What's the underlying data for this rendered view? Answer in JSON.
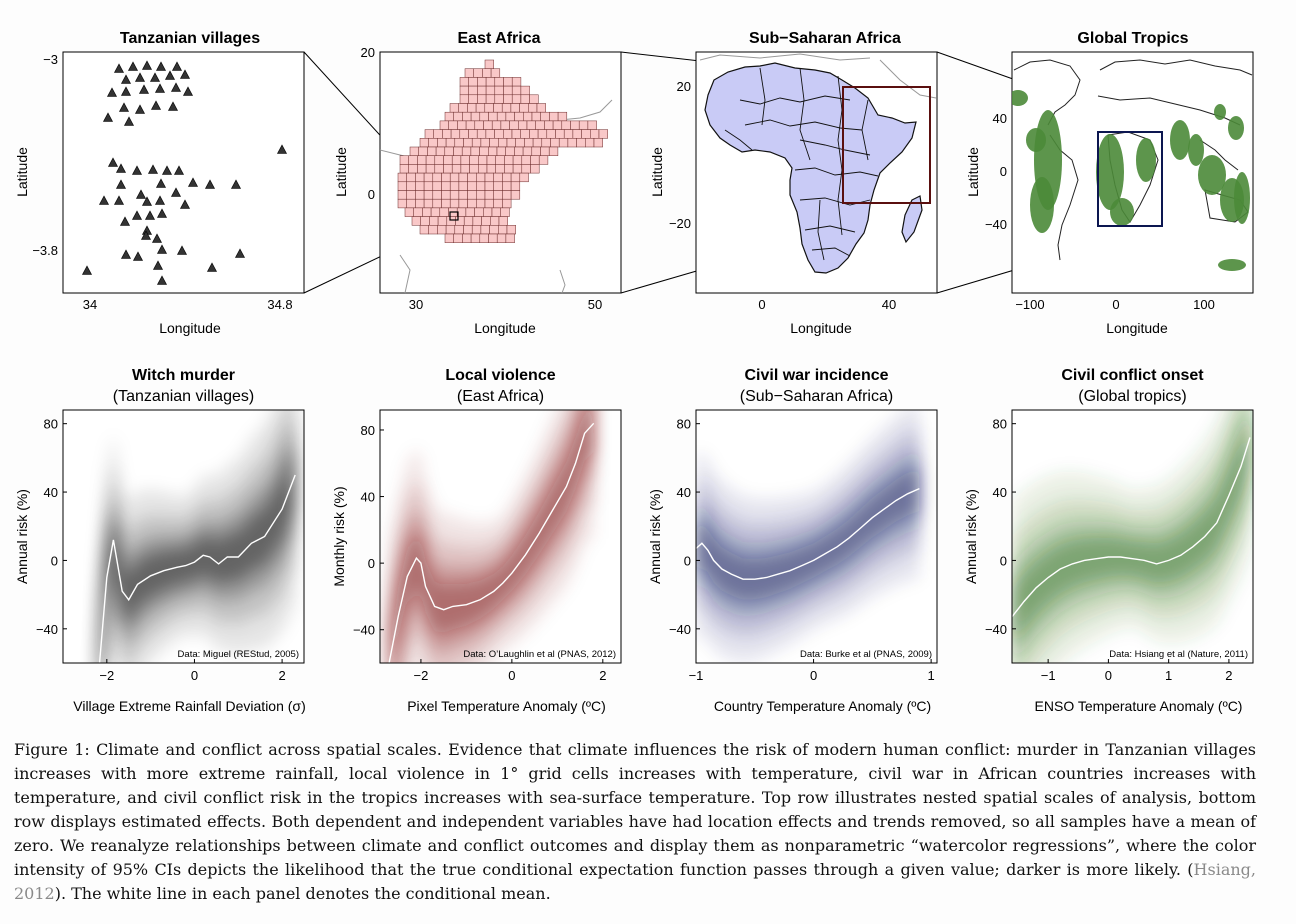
{
  "top_panels": [
    {
      "title": "Tanzanian villages",
      "xlabel": "Longitude",
      "ylabel": "Latitude",
      "xticks": [
        "34",
        "34.8"
      ],
      "yticks": [
        "−3",
        "−3.8"
      ]
    },
    {
      "title": "East Africa",
      "xlabel": "Longitude",
      "ylabel": "Latitude",
      "xticks": [
        "30",
        "50"
      ],
      "yticks": [
        "20",
        "0"
      ]
    },
    {
      "title": "Sub−Saharan Africa",
      "xlabel": "Longitude",
      "ylabel": "Latitude",
      "xticks": [
        "0",
        "40"
      ],
      "yticks": [
        "20",
        "0",
        "−20"
      ]
    },
    {
      "title": "Global Tropics",
      "xlabel": "Longitude",
      "ylabel": "Latitude",
      "xticks": [
        "−100",
        "0",
        "100"
      ],
      "yticks": [
        "40",
        "0",
        "−40"
      ]
    }
  ],
  "chart_data": [
    {
      "type": "line",
      "title": "Witch murder",
      "subtitle": "(Tanzanian villages)",
      "xlabel": "Village Extreme Rainfall Deviation (σ)",
      "ylabel": "Annual risk (%)",
      "xticks": [
        "−2",
        "0",
        "2"
      ],
      "yticks": [
        "80",
        "40",
        "0",
        "−40"
      ],
      "xlim": [
        -3.0,
        2.5
      ],
      "ylim": [
        -60,
        88
      ],
      "color": "#000000",
      "source": "Data: Miguel (REStud, 2005)",
      "x": [
        -2.2,
        -2.0,
        -1.85,
        -1.65,
        -1.5,
        -1.3,
        -1.0,
        -0.7,
        -0.4,
        -0.2,
        0.0,
        0.2,
        0.35,
        0.55,
        0.75,
        1.0,
        1.3,
        1.6,
        2.0,
        2.3
      ],
      "y": [
        -70,
        -10,
        12,
        -18,
        -23,
        -14,
        -9,
        -6,
        -4,
        -3,
        -1,
        3,
        2,
        -2,
        2,
        2,
        10,
        14,
        30,
        50
      ]
    },
    {
      "type": "line",
      "title": "Local violence",
      "subtitle": "(East Africa)",
      "xlabel": "Pixel Temperature Anomaly (ºC)",
      "ylabel": "Monthly risk (%)",
      "xticks": [
        "−2",
        "0",
        "2"
      ],
      "yticks": [
        "80",
        "40",
        "0",
        "−40"
      ],
      "xlim": [
        -2.9,
        2.4
      ],
      "ylim": [
        -60,
        92
      ],
      "color": "#7a1616",
      "source": "Data: O’Laughlin et al (PNAS, 2012)",
      "x": [
        -2.7,
        -2.5,
        -2.3,
        -2.1,
        -2.0,
        -1.9,
        -1.7,
        -1.5,
        -1.3,
        -1.0,
        -0.7,
        -0.4,
        -0.2,
        0.0,
        0.3,
        0.6,
        0.9,
        1.2,
        1.4,
        1.6,
        1.8
      ],
      "y": [
        -60,
        -32,
        -8,
        3,
        0,
        -14,
        -26,
        -28,
        -26,
        -25,
        -22,
        -17,
        -12,
        -6,
        5,
        18,
        32,
        46,
        60,
        78,
        84
      ]
    },
    {
      "type": "line",
      "title": "Civil war incidence",
      "subtitle": "(Sub−Saharan Africa)",
      "xlabel": "Country Temperature Anomaly (ºC)",
      "ylabel": "Annual risk (%)",
      "xticks": [
        "−1",
        "0",
        "1"
      ],
      "yticks": [
        "80",
        "40",
        "0",
        "−40"
      ],
      "xlim": [
        -1.0,
        1.05
      ],
      "ylim": [
        -60,
        88
      ],
      "color": "#101c5c",
      "source": "Data: Burke et al (PNAS, 2009)",
      "x": [
        -1.0,
        -0.95,
        -0.9,
        -0.85,
        -0.78,
        -0.7,
        -0.6,
        -0.5,
        -0.4,
        -0.3,
        -0.2,
        -0.1,
        0.0,
        0.1,
        0.2,
        0.3,
        0.4,
        0.5,
        0.6,
        0.7,
        0.8,
        0.9
      ],
      "y": [
        7,
        10,
        6,
        0,
        -5,
        -8,
        -11,
        -11,
        -10,
        -8,
        -6,
        -3,
        0,
        4,
        8,
        13,
        19,
        25,
        30,
        35,
        39,
        42
      ]
    },
    {
      "type": "line",
      "title": "Civil conflict onset",
      "subtitle": "(Global tropics)",
      "xlabel": "ENSO Temperature Anomaly (ºC)",
      "ylabel": "Annual risk (%)",
      "xticks": [
        "−1",
        "0",
        "1",
        "2"
      ],
      "yticks": [
        "80",
        "40",
        "0",
        "−40"
      ],
      "xlim": [
        -1.6,
        2.4
      ],
      "ylim": [
        -60,
        88
      ],
      "color": "#256b1f",
      "source": "Data: Hsiang et al (Nature, 2011)",
      "x": [
        -1.6,
        -1.4,
        -1.2,
        -1.0,
        -0.8,
        -0.6,
        -0.4,
        -0.2,
        0.0,
        0.2,
        0.4,
        0.6,
        0.8,
        1.0,
        1.2,
        1.4,
        1.6,
        1.8,
        2.0,
        2.2,
        2.35
      ],
      "y": [
        -33,
        -24,
        -16,
        -10,
        -5,
        -2,
        0,
        1,
        2,
        2,
        1,
        0,
        -2,
        0,
        3,
        8,
        14,
        22,
        38,
        55,
        72
      ]
    }
  ],
  "caption": {
    "text": "Figure 1: Climate and conflict across spatial scales. Evidence that climate influences the risk of modern human conflict: murder in Tanzanian villages increases with more extreme rainfall, local violence in 1° grid cells increases with temperature, civil war in African countries increases with temperature, and civil conflict risk in the tropics increases with sea-surface temperature. Top row illustrates nested spatial scales of analysis, bottom row displays estimated effects. Both dependent and independent variables have had location effects and trends removed, so all samples have a mean of zero. We reanalyze relationships between climate and conflict outcomes and display them as nonparametric “watercolor regressions”, where the color intensity of 95% CIs depicts the likelihood that the true conditional expectation function passes through a given value; darker is more likely. (",
    "citation": "Hsiang, 2012",
    "tail": "). The white line in each panel denotes the conditional mean."
  }
}
